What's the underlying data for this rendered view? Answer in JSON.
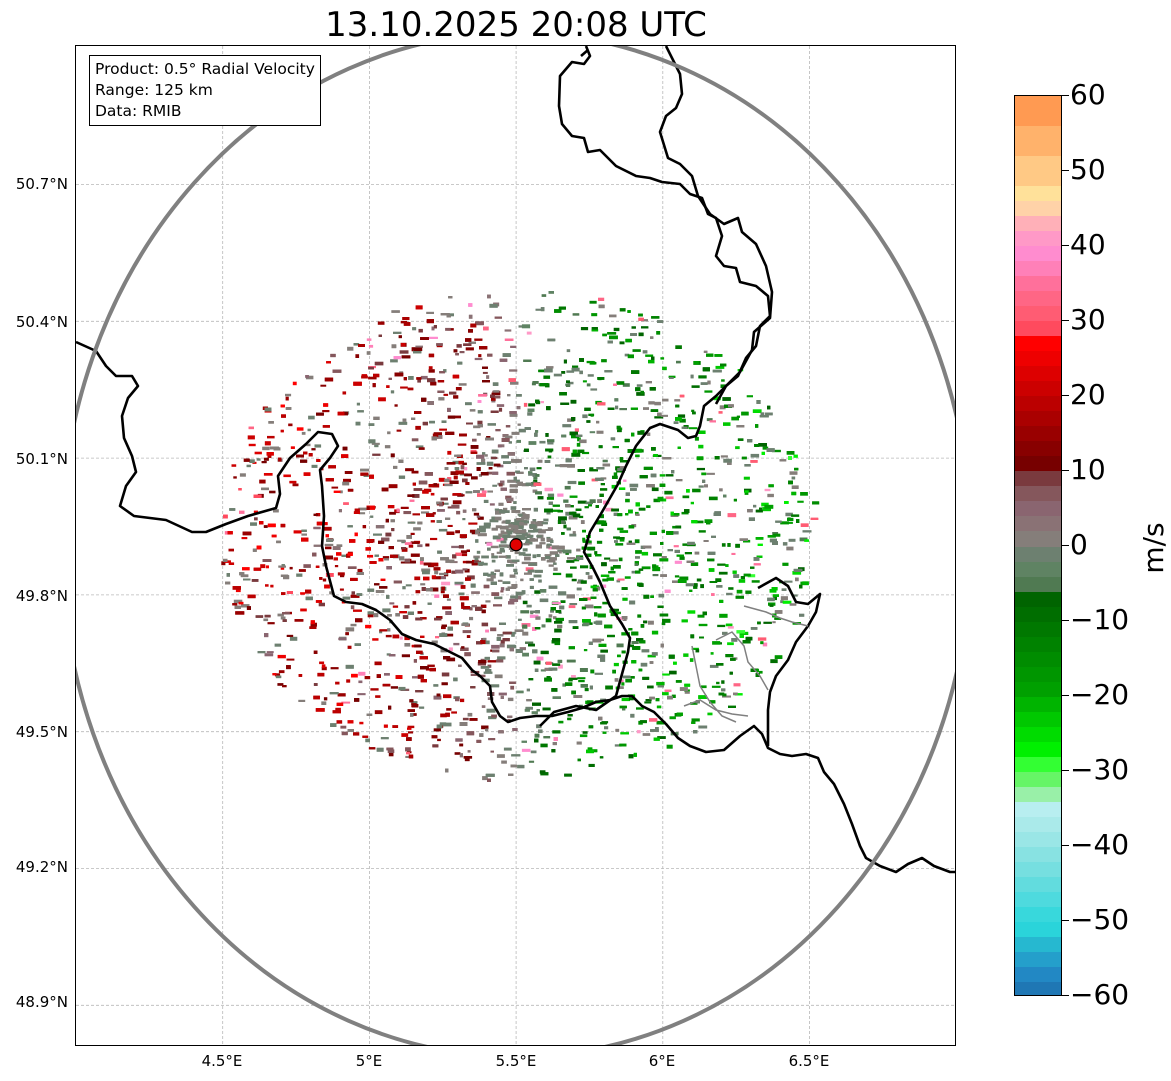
{
  "title": "13.10.2025 20:08 UTC",
  "info_box": {
    "product": "Product: 0.5° Radial Velocity",
    "range": "Range: 125 km",
    "data": "Data: RMIB"
  },
  "axes": {
    "lat_labels": [
      "50.7°N",
      "50.4°N",
      "50.1°N",
      "49.8°N",
      "49.5°N",
      "49.2°N",
      "48.9°N"
    ],
    "lon_labels": [
      "4.5°E",
      "5°E",
      "5.5°E",
      "6°E",
      "6.5°E"
    ],
    "lat_range": [
      48.8,
      50.99
    ],
    "lon_range": [
      4.0,
      7.0
    ],
    "grid": true
  },
  "radar": {
    "site_lat": 49.91,
    "site_lon": 5.5,
    "range_km": 125,
    "site_color": "#e00000",
    "range_ring_color": "#808080"
  },
  "colorbar": {
    "unit": "m/s",
    "min": -60,
    "max": 60,
    "tick_labels": [
      "60",
      "50",
      "40",
      "30",
      "20",
      "10",
      "0",
      "−10",
      "−20",
      "−30",
      "−40",
      "−50",
      "−60"
    ],
    "tick_values": [
      60,
      50,
      40,
      30,
      20,
      10,
      0,
      -10,
      -20,
      -30,
      -40,
      -50,
      -60
    ],
    "segments": [
      {
        "from": 56,
        "to": 60,
        "color": "#ff9a52"
      },
      {
        "from": 52,
        "to": 56,
        "color": "#ffb26b"
      },
      {
        "from": 48,
        "to": 52,
        "color": "#ffc985"
      },
      {
        "from": 46,
        "to": 48,
        "color": "#ffe19a"
      },
      {
        "from": 44,
        "to": 46,
        "color": "#ffd2a8"
      },
      {
        "from": 42,
        "to": 44,
        "color": "#ffb0b8"
      },
      {
        "from": 40,
        "to": 42,
        "color": "#ff99c7"
      },
      {
        "from": 38,
        "to": 40,
        "color": "#ff8ccf"
      },
      {
        "from": 36,
        "to": 38,
        "color": "#ff80b8"
      },
      {
        "from": 34,
        "to": 36,
        "color": "#ff709b"
      },
      {
        "from": 32,
        "to": 34,
        "color": "#ff6685"
      },
      {
        "from": 30,
        "to": 32,
        "color": "#ff5c73"
      },
      {
        "from": 28,
        "to": 30,
        "color": "#ff4a5e"
      },
      {
        "from": 26,
        "to": 28,
        "color": "#ff0000"
      },
      {
        "from": 24,
        "to": 26,
        "color": "#ee0000"
      },
      {
        "from": 22,
        "to": 24,
        "color": "#dd0000"
      },
      {
        "from": 20,
        "to": 22,
        "color": "#cc0000"
      },
      {
        "from": 18,
        "to": 20,
        "color": "#bb0000"
      },
      {
        "from": 16,
        "to": 18,
        "color": "#aa0000"
      },
      {
        "from": 14,
        "to": 16,
        "color": "#990000"
      },
      {
        "from": 12,
        "to": 14,
        "color": "#880000"
      },
      {
        "from": 10,
        "to": 12,
        "color": "#770000"
      },
      {
        "from": 8,
        "to": 10,
        "color": "#7a3a3e"
      },
      {
        "from": 6,
        "to": 8,
        "color": "#85575c"
      },
      {
        "from": 4,
        "to": 6,
        "color": "#8a6570"
      },
      {
        "from": 2,
        "to": 4,
        "color": "#8a7275"
      },
      {
        "from": 0,
        "to": 2,
        "color": "#857e7a"
      },
      {
        "from": -2,
        "to": 0,
        "color": "#6d8070"
      },
      {
        "from": -4,
        "to": -2,
        "color": "#5f8363"
      },
      {
        "from": -6,
        "to": -4,
        "color": "#507a52"
      },
      {
        "from": -8,
        "to": -6,
        "color": "#006400"
      },
      {
        "from": -10,
        "to": -8,
        "color": "#006e00"
      },
      {
        "from": -12,
        "to": -10,
        "color": "#007800"
      },
      {
        "from": -14,
        "to": -12,
        "color": "#008200"
      },
      {
        "from": -16,
        "to": -14,
        "color": "#008c00"
      },
      {
        "from": -18,
        "to": -16,
        "color": "#009600"
      },
      {
        "from": -20,
        "to": -18,
        "color": "#00a000"
      },
      {
        "from": -22,
        "to": -20,
        "color": "#00b400"
      },
      {
        "from": -24,
        "to": -22,
        "color": "#00c800"
      },
      {
        "from": -26,
        "to": -24,
        "color": "#00dc00"
      },
      {
        "from": -28,
        "to": -26,
        "color": "#00f000"
      },
      {
        "from": -30,
        "to": -28,
        "color": "#33ff33"
      },
      {
        "from": -32,
        "to": -30,
        "color": "#66f566"
      },
      {
        "from": -34,
        "to": -32,
        "color": "#99f0a8"
      },
      {
        "from": -36,
        "to": -34,
        "color": "#b8eef0"
      },
      {
        "from": -38,
        "to": -36,
        "color": "#aaeaea"
      },
      {
        "from": -40,
        "to": -38,
        "color": "#9ae6e6"
      },
      {
        "from": -42,
        "to": -40,
        "color": "#88e2e2"
      },
      {
        "from": -44,
        "to": -42,
        "color": "#76dfe0"
      },
      {
        "from": -46,
        "to": -44,
        "color": "#62dcde"
      },
      {
        "from": -48,
        "to": -46,
        "color": "#4edade"
      },
      {
        "from": -50,
        "to": -48,
        "color": "#38d8dc"
      },
      {
        "from": -52,
        "to": -50,
        "color": "#2ad4da"
      },
      {
        "from": -54,
        "to": -52,
        "color": "#26b8d0"
      },
      {
        "from": -56,
        "to": -54,
        "color": "#249fcb"
      },
      {
        "from": -58,
        "to": -56,
        "color": "#2288c4"
      },
      {
        "from": -60,
        "to": -58,
        "color": "#1f77b4"
      }
    ]
  },
  "colors": {
    "approaching_green": "#009600",
    "receding_red": "#aa0000",
    "near_zero_gray": "#808080",
    "border": "#000000",
    "minor_border": "#808080"
  }
}
